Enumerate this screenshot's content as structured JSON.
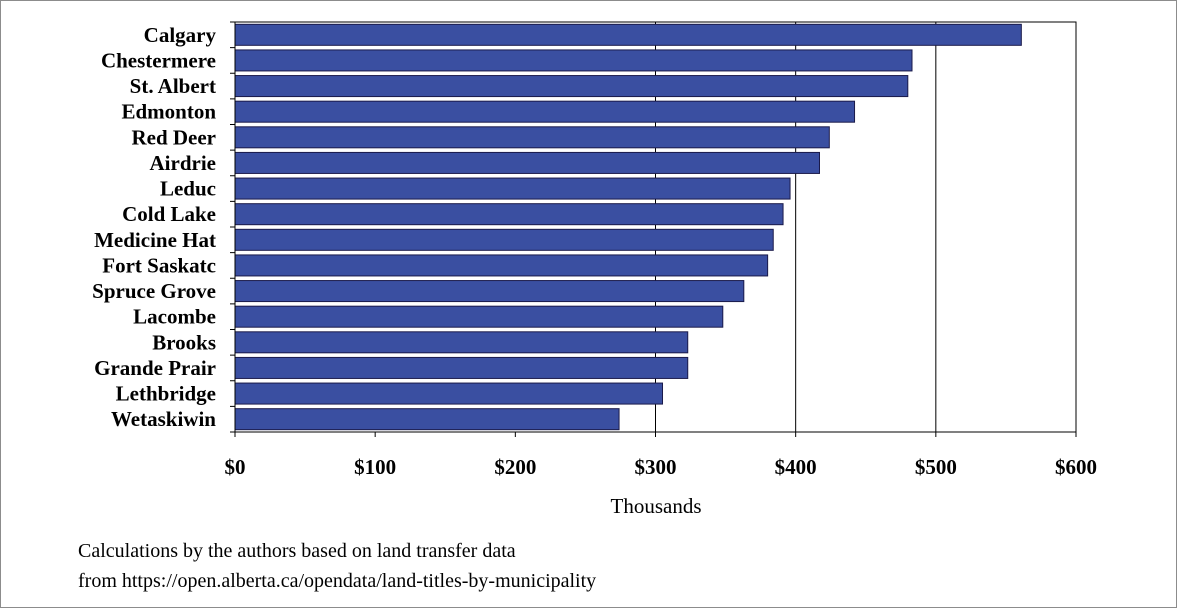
{
  "chart_data": {
    "type": "bar",
    "orientation": "horizontal",
    "categories": [
      "Calgary",
      "Chestermere",
      "St. Albert",
      "Edmonton",
      "Red Deer",
      "Airdrie",
      "Leduc",
      "Cold Lake",
      "Medicine Hat",
      "Fort Saskatc",
      "Spruce Grove",
      "Lacombe",
      "Brooks",
      "Grande Prair",
      "Lethbridge",
      "Wetaskiwin"
    ],
    "values": [
      561,
      483,
      480,
      442,
      424,
      417,
      396,
      391,
      384,
      380,
      363,
      348,
      323,
      323,
      305,
      274
    ],
    "xlabel": "Thousands",
    "xlim": [
      0,
      600
    ],
    "x_ticks": [
      0,
      100,
      200,
      300,
      400,
      500,
      600
    ],
    "x_tick_labels": [
      "$0",
      "$100",
      "$200",
      "$300",
      "$400",
      "$500",
      "$600"
    ],
    "grid": "vertical gridlines at $300, $400, $500",
    "bar_color": "#3a4fa1",
    "bar_border_color": "#1a1a4a"
  },
  "footnote": {
    "line1": "Calculations by the authors based on land transfer data",
    "line2": "from https://open.alberta.ca/opendata/land-titles-by-municipality"
  }
}
